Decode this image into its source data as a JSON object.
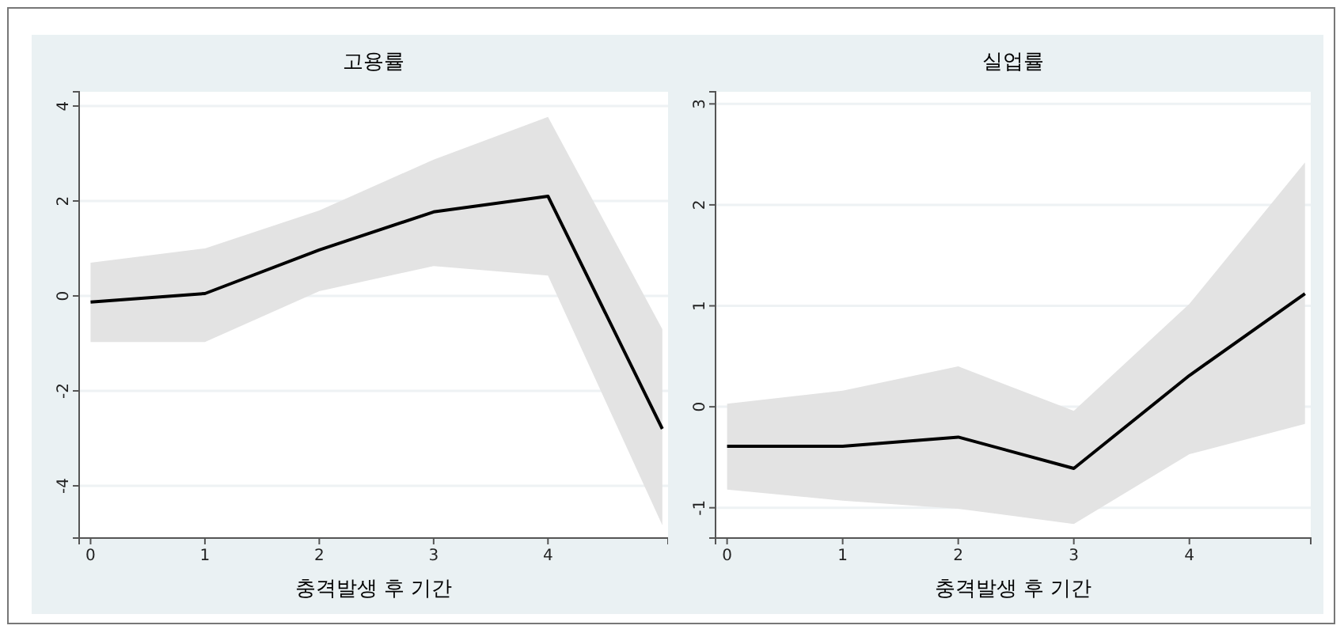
{
  "chart_data": [
    {
      "type": "line",
      "title": "고용률",
      "xlabel": "충격발생 후 기간",
      "x": [
        0,
        1,
        2,
        3,
        4,
        5
      ],
      "xlim": [
        -0.1,
        5.05
      ],
      "xticks": [
        0,
        1,
        2,
        3,
        4
      ],
      "ylim": [
        -5.1,
        4.3
      ],
      "yticks": [
        -4,
        -2,
        0,
        2,
        4
      ],
      "grid": "y",
      "series": [
        {
          "color": "#000000",
          "values": [
            -0.13,
            0.05,
            0.97,
            1.77,
            2.1,
            -2.8
          ],
          "lower": [
            -0.97,
            -0.97,
            0.1,
            0.63,
            0.43,
            -4.83
          ],
          "upper": [
            0.7,
            1.0,
            1.8,
            2.87,
            3.77,
            -0.7
          ]
        }
      ]
    },
    {
      "type": "line",
      "title": "실업률",
      "xlabel": "충격발생 후 기간",
      "x": [
        0,
        1,
        2,
        3,
        4,
        5
      ],
      "xlim": [
        -0.1,
        5.05
      ],
      "xticks": [
        0,
        1,
        2,
        3,
        4
      ],
      "ylim": [
        -1.3,
        3.12
      ],
      "yticks": [
        -1,
        0,
        1,
        2,
        3
      ],
      "grid": "y",
      "series": [
        {
          "color": "#000000",
          "values": [
            -0.39,
            -0.39,
            -0.3,
            -0.61,
            0.31,
            1.12
          ],
          "lower": [
            -0.82,
            -0.93,
            -1.01,
            -1.16,
            -0.47,
            -0.17
          ],
          "upper": [
            0.03,
            0.16,
            0.4,
            -0.04,
            1.02,
            2.42
          ]
        }
      ]
    }
  ]
}
